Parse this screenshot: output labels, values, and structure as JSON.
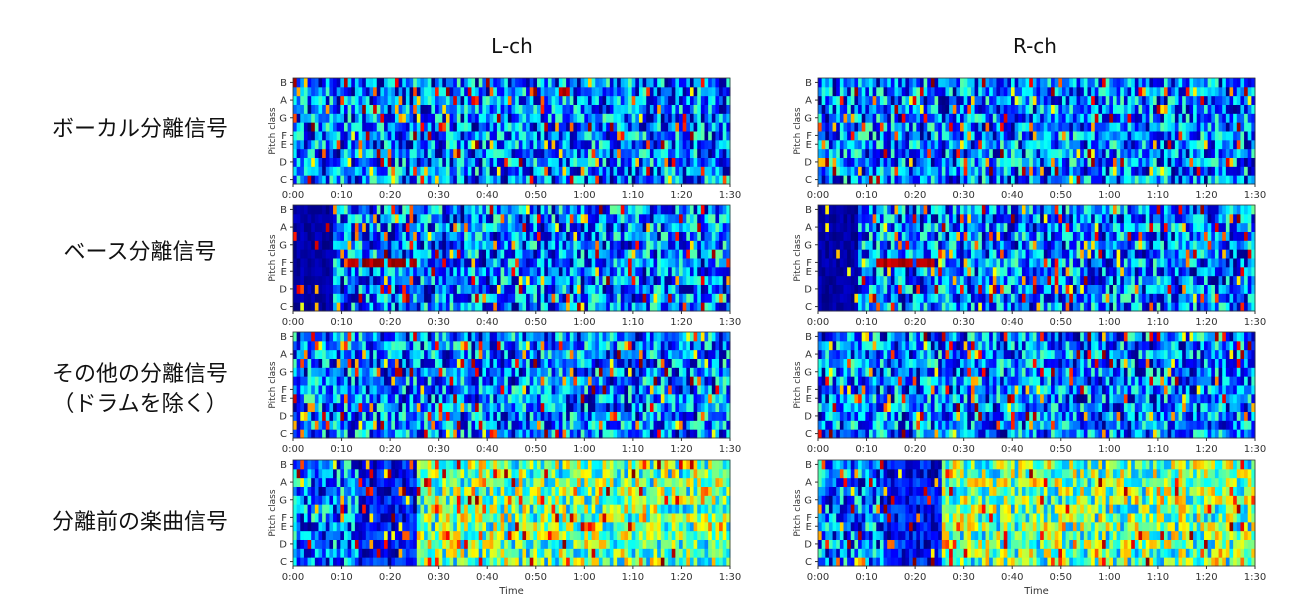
{
  "columns": [
    "L-ch",
    "R-ch"
  ],
  "rows": [
    "ボーカル分離信号",
    "ベース分離信号",
    "その他の分離信号\n（ドラムを除く）",
    "分離前の楽曲信号"
  ],
  "chart_data": {
    "type": "heatmap",
    "colormap": "jet",
    "ylabel": "Pitch class",
    "xlabel": "Time",
    "yticks": [
      "C",
      "D",
      "E",
      "F",
      "G",
      "A",
      "B"
    ],
    "ytick_indices": [
      0,
      2,
      4,
      5,
      7,
      9,
      11
    ],
    "xticks": [
      "0:00",
      "0:10",
      "0:20",
      "0:30",
      "0:40",
      "0:50",
      "1:00",
      "1:10",
      "1:20",
      "1:30"
    ],
    "xlim_seconds": [
      0,
      90
    ],
    "panels": [
      {
        "row": "ボーカル分離信号",
        "channel": "L-ch"
      },
      {
        "row": "ボーカル分離信号",
        "channel": "R-ch"
      },
      {
        "row": "ベース分離信号",
        "channel": "L-ch"
      },
      {
        "row": "ベース分離信号",
        "channel": "R-ch"
      },
      {
        "row": "その他の分離信号（ドラムを除く）",
        "channel": "L-ch"
      },
      {
        "row": "その他の分離信号（ドラムを除く）",
        "channel": "R-ch"
      },
      {
        "row": "分離前の楽曲信号",
        "channel": "L-ch"
      },
      {
        "row": "分離前の楽曲信号",
        "channel": "R-ch"
      }
    ]
  }
}
